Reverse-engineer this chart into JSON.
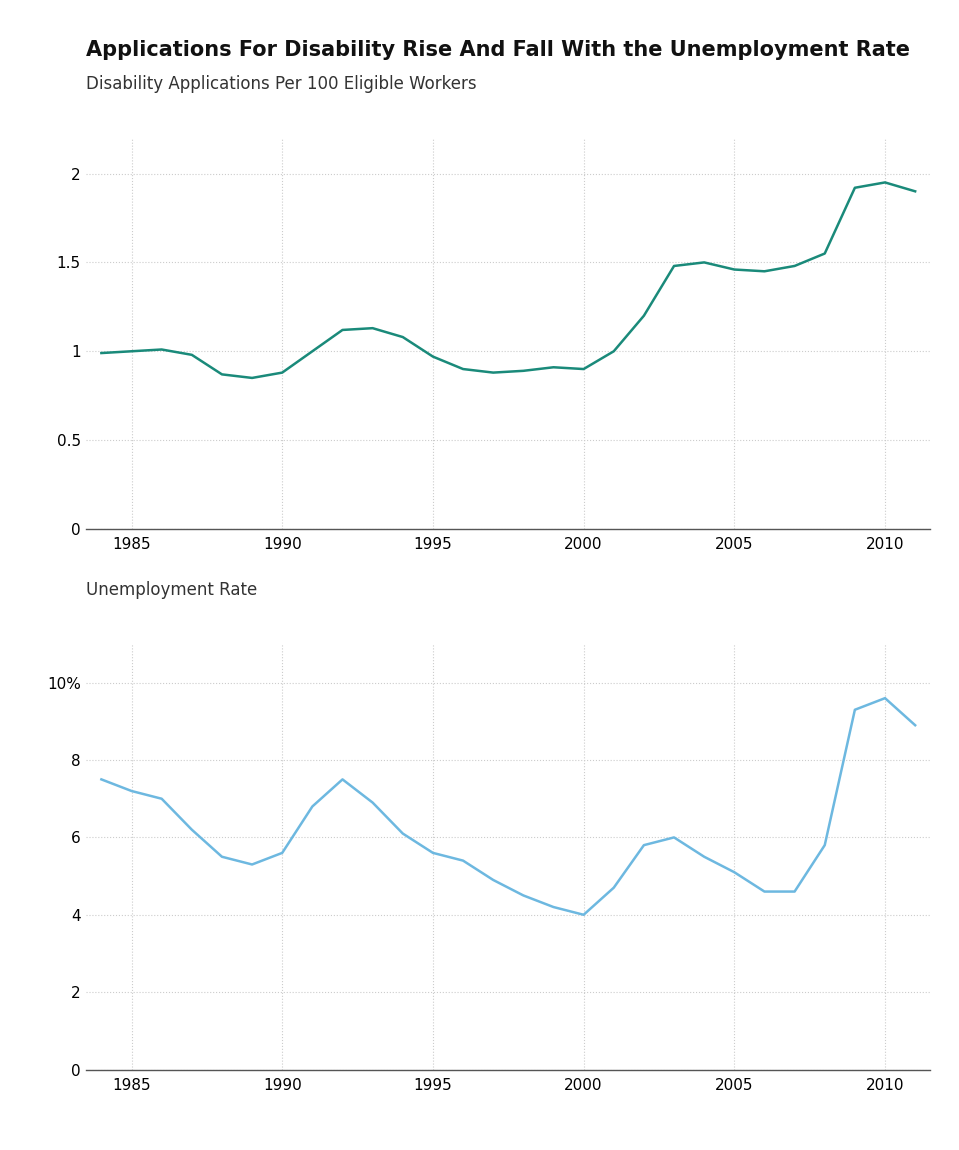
{
  "title": "Applications For Disability Rise And Fall With the Unemployment Rate",
  "subtitle1": "Disability Applications Per 100 Eligible Workers",
  "subtitle2": "Unemployment Rate",
  "disability_years": [
    1984,
    1985,
    1986,
    1987,
    1988,
    1989,
    1990,
    1991,
    1992,
    1993,
    1994,
    1995,
    1996,
    1997,
    1998,
    1999,
    2000,
    2001,
    2002,
    2003,
    2004,
    2005,
    2006,
    2007,
    2008,
    2009,
    2010,
    2011
  ],
  "disability_values": [
    0.99,
    1.0,
    1.01,
    0.98,
    0.87,
    0.85,
    0.88,
    1.0,
    1.12,
    1.13,
    1.08,
    0.97,
    0.9,
    0.88,
    0.89,
    0.91,
    0.9,
    1.0,
    1.2,
    1.48,
    1.5,
    1.46,
    1.45,
    1.48,
    1.55,
    1.92,
    1.95,
    1.9
  ],
  "unemployment_years": [
    1984,
    1985,
    1986,
    1987,
    1988,
    1989,
    1990,
    1991,
    1992,
    1993,
    1994,
    1995,
    1996,
    1997,
    1998,
    1999,
    2000,
    2001,
    2002,
    2003,
    2004,
    2005,
    2006,
    2007,
    2008,
    2009,
    2010,
    2011
  ],
  "unemployment_values": [
    7.5,
    7.2,
    7.0,
    6.2,
    5.5,
    5.3,
    5.6,
    6.8,
    7.5,
    6.9,
    6.1,
    5.6,
    5.4,
    4.9,
    4.5,
    4.2,
    4.0,
    4.7,
    5.8,
    6.0,
    5.5,
    5.1,
    4.6,
    4.6,
    5.8,
    9.3,
    9.6,
    8.9
  ],
  "disability_color": "#1a8a7a",
  "unemployment_color": "#6db8e0",
  "background_color": "#ffffff",
  "grid_color": "#cccccc",
  "xlim": [
    1983.5,
    2011.5
  ],
  "disability_ylim": [
    0,
    2.2
  ],
  "unemployment_ylim": [
    0,
    11
  ],
  "disability_yticks": [
    0,
    0.5,
    1.0,
    1.5,
    2.0
  ],
  "unemployment_yticks": [
    0,
    2,
    4,
    6,
    8,
    10
  ],
  "xticks": [
    1985,
    1990,
    1995,
    2000,
    2005,
    2010
  ],
  "title_fontsize": 15,
  "subtitle_fontsize": 12,
  "tick_fontsize": 11,
  "line_width": 1.8
}
